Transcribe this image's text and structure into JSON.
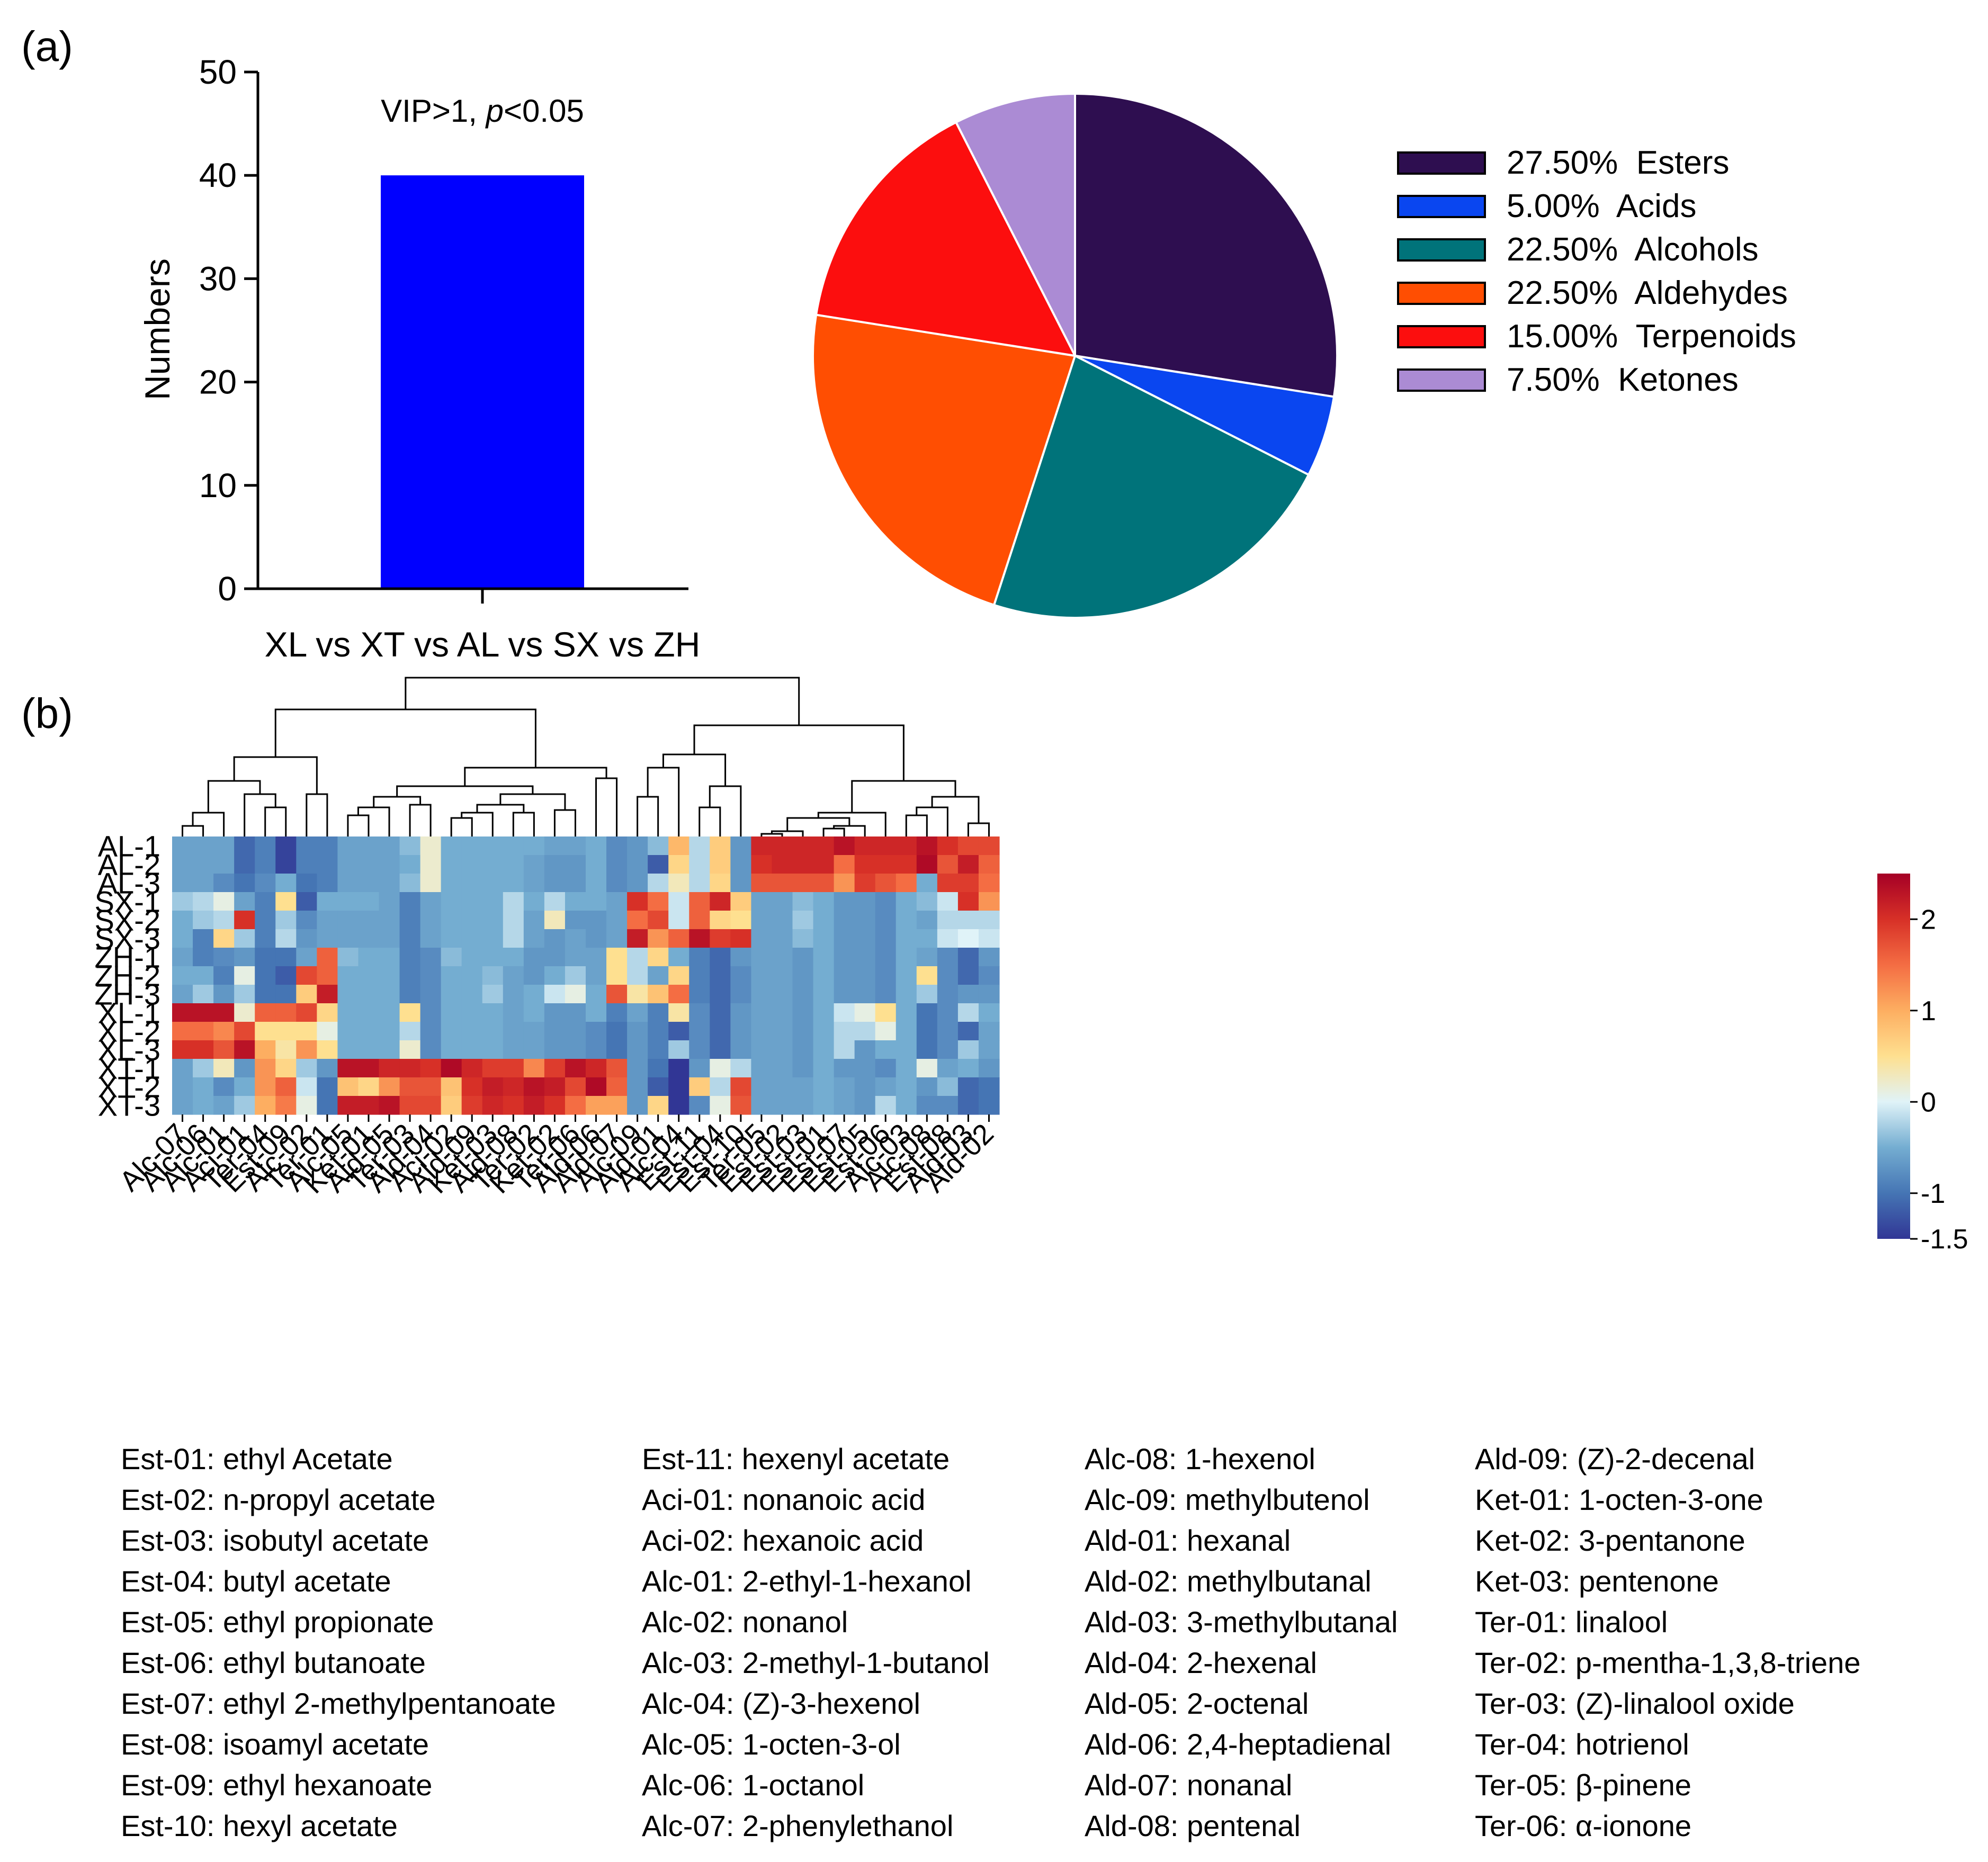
{
  "panel_labels": {
    "a": "(a)",
    "b": "(b)"
  },
  "chart_data": [
    {
      "type": "bar",
      "categories": [
        "XL vs XT vs AL vs SX vs ZH"
      ],
      "values": [
        40
      ],
      "ylabel": "Numbers",
      "ylim": [
        0,
        50
      ],
      "yticks": [
        "0",
        "10",
        "20",
        "30",
        "40",
        "50"
      ],
      "annotation": {
        "prefix": "VIP>1, ",
        "italic": "p",
        "suffix": "<0.05"
      },
      "color": "#0000FF"
    },
    {
      "type": "pie",
      "labels": [
        "Esters",
        "Acids",
        "Alcohols",
        "Aldehydes",
        "Terpenoids",
        "Ketones"
      ],
      "values": [
        27.5,
        5.0,
        22.5,
        22.5,
        15.0,
        7.5
      ],
      "legend": [
        "27.50%  Esters",
        "5.00%  Acids",
        "22.50%  Alcohols",
        "22.50%  Aldehydes",
        "15.00%  Terpenoids",
        "7.50%  Ketones"
      ],
      "colors": [
        "#2E0E50",
        "#0A46F0",
        "#00737A",
        "#FF4E02",
        "#FC0E0E",
        "#AB8BD4"
      ],
      "legend_position": "right"
    },
    {
      "type": "heatmap",
      "rows": [
        "AL-1",
        "AL-2",
        "AL-3",
        "SX-1",
        "SX-2",
        "SX-3",
        "ZH-1",
        "ZH-2",
        "ZH-3",
        "XL-1",
        "XL-2",
        "XL-3",
        "XT-1",
        "XT-2",
        "XT-3"
      ],
      "columns": [
        "Alc-07",
        "Alc-06",
        "Alc-01",
        "Aci-01",
        "Ter-04",
        "Est-09",
        "Alc-02",
        "Ter-01",
        "Alc-05",
        "Ket-01",
        "Ald-05",
        "Ter-03",
        "Ald-04",
        "Aci-02",
        "Ald-09",
        "Ket-03",
        "Ald-08",
        "Ter-02",
        "Ket-02",
        "Ter-06",
        "Ald-06",
        "Ald-07",
        "Alc-09",
        "Ald-01",
        "Alc-04",
        "Est-11",
        "Est-04",
        "Est-10",
        "Ter-05",
        "Est-02",
        "Est-03",
        "Est-01",
        "Est-07",
        "Est-05",
        "Est-06",
        "Alc-03",
        "Alc-08",
        "Est-08",
        "Ald-03",
        "Ald-02"
      ],
      "values": [
        [
          -0.6,
          -0.6,
          -0.6,
          -1.1,
          -0.9,
          -1.4,
          -0.9,
          -0.9,
          -0.6,
          -0.6,
          -0.6,
          -0.4,
          0.2,
          -0.5,
          -0.5,
          -0.5,
          -0.5,
          -0.5,
          -0.6,
          -0.6,
          -0.5,
          -0.8,
          -0.7,
          -0.4,
          0.9,
          -0.2,
          0.7,
          -0.7,
          2.1,
          2.1,
          2.1,
          2.1,
          2.3,
          2.1,
          2.1,
          2.1,
          2.3,
          2.0,
          1.8,
          1.8
        ],
        [
          -0.6,
          -0.6,
          -0.6,
          -1.1,
          -0.9,
          -1.4,
          -0.9,
          -0.9,
          -0.6,
          -0.6,
          -0.6,
          -0.5,
          0.2,
          -0.5,
          -0.5,
          -0.5,
          -0.5,
          -0.6,
          -0.7,
          -0.7,
          -0.5,
          -0.8,
          -0.7,
          -1.2,
          0.6,
          -0.2,
          0.7,
          -0.7,
          2.0,
          2.1,
          2.1,
          2.1,
          1.5,
          2.0,
          2.0,
          2.0,
          2.4,
          1.7,
          2.2,
          1.6
        ],
        [
          -0.6,
          -0.6,
          -0.8,
          -1.0,
          -0.8,
          -0.5,
          -1.0,
          -0.9,
          -0.6,
          -0.6,
          -0.6,
          -0.4,
          0.2,
          -0.5,
          -0.5,
          -0.5,
          -0.5,
          -0.6,
          -0.7,
          -0.7,
          -0.5,
          -0.8,
          -0.7,
          -0.2,
          0.3,
          -0.2,
          0.6,
          -0.7,
          1.7,
          1.7,
          1.7,
          1.7,
          1.2,
          1.9,
          1.7,
          1.5,
          -0.5,
          1.9,
          1.9,
          1.5
        ],
        [
          -0.3,
          -0.2,
          0.1,
          -0.6,
          -0.9,
          0.5,
          -1.2,
          -0.5,
          -0.5,
          -0.5,
          -0.6,
          -0.9,
          -0.6,
          -0.5,
          -0.5,
          -0.5,
          -0.2,
          -0.5,
          -0.2,
          -0.5,
          -0.5,
          -0.6,
          2.0,
          1.5,
          -0.1,
          1.6,
          2.1,
          0.7,
          -0.6,
          -0.6,
          -0.4,
          -0.5,
          -0.7,
          -0.7,
          -0.8,
          -0.5,
          -0.4,
          -0.1,
          2.0,
          1.2
        ],
        [
          -0.5,
          -0.3,
          -0.2,
          2.0,
          -0.9,
          -0.3,
          -0.8,
          -0.6,
          -0.6,
          -0.6,
          -0.6,
          -0.9,
          -0.6,
          -0.5,
          -0.5,
          -0.5,
          -0.2,
          -0.6,
          0.3,
          -0.7,
          -0.7,
          -0.6,
          1.5,
          1.8,
          -0.1,
          1.6,
          0.6,
          0.5,
          -0.6,
          -0.6,
          -0.3,
          -0.5,
          -0.7,
          -0.7,
          -0.8,
          -0.5,
          -0.6,
          -0.2,
          -0.2,
          -0.2
        ],
        [
          -0.5,
          -0.9,
          0.6,
          -0.3,
          -0.9,
          -0.2,
          -0.7,
          -0.6,
          -0.6,
          -0.6,
          -0.6,
          -0.9,
          -0.6,
          -0.5,
          -0.5,
          -0.5,
          -0.2,
          -0.6,
          -0.7,
          -0.6,
          -0.7,
          -0.6,
          2.2,
          1.2,
          1.6,
          2.3,
          1.9,
          2.0,
          -0.6,
          -0.6,
          -0.4,
          -0.5,
          -0.7,
          -0.7,
          -0.8,
          -0.5,
          -0.5,
          -0.1,
          0.0,
          -0.1
        ],
        [
          -0.6,
          -0.9,
          -0.8,
          -0.7,
          -1.0,
          -1.0,
          -0.6,
          1.6,
          -0.4,
          -0.5,
          -0.5,
          -0.9,
          -0.8,
          -0.4,
          -0.5,
          -0.5,
          -0.5,
          -0.7,
          -0.7,
          -0.6,
          -0.6,
          0.5,
          -0.2,
          0.6,
          -0.5,
          -0.9,
          -1.1,
          -0.7,
          -0.6,
          -0.6,
          -0.7,
          -0.5,
          -0.7,
          -0.7,
          -0.8,
          -0.5,
          -0.6,
          -0.8,
          -1.1,
          -0.7
        ],
        [
          -0.5,
          -0.5,
          -0.9,
          0.1,
          -1.0,
          -1.2,
          1.8,
          1.6,
          -0.5,
          -0.5,
          -0.5,
          -0.9,
          -0.8,
          -0.5,
          -0.5,
          -0.4,
          -0.6,
          -0.7,
          -0.5,
          -0.3,
          -0.6,
          0.5,
          -0.2,
          -0.6,
          0.6,
          -0.9,
          -1.1,
          -0.8,
          -0.6,
          -0.6,
          -0.7,
          -0.5,
          -0.7,
          -0.7,
          -0.8,
          -0.5,
          0.5,
          -0.8,
          -1.1,
          -0.8
        ],
        [
          -0.6,
          -0.3,
          -0.7,
          -0.3,
          -1.0,
          -1.0,
          0.7,
          2.2,
          -0.5,
          -0.5,
          -0.5,
          -0.9,
          -0.8,
          -0.5,
          -0.5,
          -0.3,
          -0.6,
          -0.5,
          -0.1,
          0.1,
          -0.5,
          1.7,
          0.4,
          0.8,
          1.5,
          -0.9,
          -1.1,
          -0.8,
          -0.6,
          -0.6,
          -0.7,
          -0.5,
          -0.7,
          -0.7,
          -0.8,
          -0.5,
          -0.3,
          -0.8,
          -0.7,
          -0.7
        ],
        [
          2.3,
          2.3,
          2.3,
          0.2,
          1.6,
          1.6,
          1.8,
          0.6,
          -0.5,
          -0.5,
          -0.5,
          0.5,
          -0.8,
          -0.5,
          -0.5,
          -0.5,
          -0.6,
          -0.5,
          -0.7,
          -0.7,
          -0.5,
          -0.9,
          -0.6,
          -0.9,
          0.4,
          -0.8,
          -1.1,
          -0.7,
          -0.6,
          -0.6,
          -0.7,
          -0.5,
          -0.1,
          0.1,
          0.5,
          -0.5,
          -1.0,
          -0.8,
          -0.2,
          -0.5
        ],
        [
          1.5,
          1.5,
          1.3,
          1.8,
          0.5,
          0.5,
          0.5,
          0.1,
          -0.5,
          -0.5,
          -0.5,
          -0.2,
          -0.8,
          -0.5,
          -0.5,
          -0.5,
          -0.6,
          -0.6,
          -0.7,
          -0.7,
          -0.8,
          -1.0,
          -0.7,
          -0.9,
          -1.2,
          -0.8,
          -1.1,
          -0.7,
          -0.6,
          -0.6,
          -0.7,
          -0.5,
          -0.2,
          -0.2,
          0.1,
          -0.5,
          -1.0,
          -0.8,
          -1.1,
          -0.6
        ],
        [
          2.0,
          2.0,
          1.7,
          2.3,
          1.0,
          0.4,
          1.2,
          0.5,
          -0.5,
          -0.5,
          -0.5,
          0.2,
          -0.8,
          -0.5,
          -0.5,
          -0.5,
          -0.6,
          -0.6,
          -0.7,
          -0.7,
          -0.8,
          -1.0,
          -0.7,
          -0.9,
          -0.3,
          -0.8,
          -1.1,
          -0.7,
          -0.6,
          -0.6,
          -0.7,
          -0.5,
          -0.2,
          -0.7,
          -0.5,
          -0.5,
          -1.0,
          -0.8,
          -0.3,
          -0.6
        ],
        [
          -0.6,
          -0.3,
          0.3,
          -0.7,
          1.2,
          0.6,
          -0.3,
          -0.7,
          2.3,
          2.3,
          2.1,
          2.1,
          2.0,
          2.4,
          2.1,
          1.9,
          1.9,
          1.3,
          1.9,
          2.3,
          2.1,
          1.7,
          -0.7,
          -1.0,
          -1.5,
          -0.7,
          0.1,
          -0.2,
          -0.6,
          -0.6,
          -0.7,
          -0.5,
          -0.7,
          -0.7,
          -0.8,
          -0.5,
          0.1,
          -0.6,
          -0.5,
          -0.7
        ],
        [
          -0.6,
          -0.5,
          -0.8,
          -0.5,
          1.2,
          1.6,
          -0.1,
          -1.0,
          0.8,
          0.6,
          1.2,
          1.7,
          1.7,
          0.8,
          2.0,
          2.2,
          2.1,
          2.3,
          2.2,
          1.8,
          2.4,
          1.6,
          -0.7,
          -1.2,
          -1.5,
          0.7,
          -0.2,
          1.8,
          -0.6,
          -0.6,
          -0.6,
          -0.5,
          -0.6,
          -0.7,
          -0.6,
          -0.5,
          -0.7,
          -0.4,
          -1.1,
          -1.0
        ],
        [
          -0.6,
          -0.5,
          -0.6,
          -0.3,
          1.0,
          1.4,
          0.1,
          -1.0,
          2.2,
          2.2,
          2.3,
          1.8,
          1.8,
          0.7,
          1.9,
          2.1,
          2.0,
          2.2,
          2.0,
          1.5,
          1.1,
          1.1,
          -0.7,
          0.6,
          -1.5,
          -0.8,
          0.1,
          1.7,
          -0.6,
          -0.6,
          -0.6,
          -0.5,
          -0.6,
          -0.7,
          -0.2,
          -0.5,
          -0.8,
          -0.8,
          -1.1,
          -1.0
        ]
      ],
      "colorbar": {
        "min": -1.5,
        "max": 2.5,
        "ticks": [
          "2",
          "1",
          "0",
          "-1",
          "-1.5"
        ]
      },
      "colormap": "RdYlBu_r"
    }
  ],
  "abbreviations": [
    [
      "Est-01: ethyl Acetate",
      "Est-02: n-propyl acetate",
      "Est-03: isobutyl acetate",
      "Est-04: butyl acetate",
      "Est-05: ethyl propionate",
      "Est-06: ethyl butanoate",
      "Est-07: ethyl 2-methylpentanoate",
      "Est-08: isoamyl acetate",
      "Est-09: ethyl hexanoate",
      "Est-10: hexyl acetate"
    ],
    [
      "Est-11: hexenyl acetate",
      "Aci-01: nonanoic acid",
      "Aci-02: hexanoic acid",
      "Alc-01: 2-ethyl-1-hexanol",
      "Alc-02: nonanol",
      "Alc-03: 2-methyl-1-butanol",
      "Alc-04: (Z)-3-hexenol",
      "Alc-05: 1-octen-3-ol",
      "Alc-06: 1-octanol",
      "Alc-07: 2-phenylethanol"
    ],
    [
      "Alc-08: 1-hexenol",
      "Alc-09: methylbutenol",
      "Ald-01: hexanal",
      "Ald-02: methylbutanal",
      "Ald-03: 3-methylbutanal",
      "Ald-04: 2-hexenal",
      "Ald-05: 2-octenal",
      "Ald-06: 2,4-heptadienal",
      "Ald-07: nonanal",
      "Ald-08: pentenal"
    ],
    [
      "Ald-09: (Z)-2-decenal",
      "Ket-01: 1-octen-3-one",
      "Ket-02: 3-pentanone",
      "Ket-03: pentenone",
      "Ter-01: linalool",
      "Ter-02: p-mentha-1,3,8-triene",
      "Ter-03: (Z)-linalool oxide",
      "Ter-04: hotrienol",
      "Ter-05: β-pinene",
      "Ter-06: α-ionone"
    ]
  ]
}
